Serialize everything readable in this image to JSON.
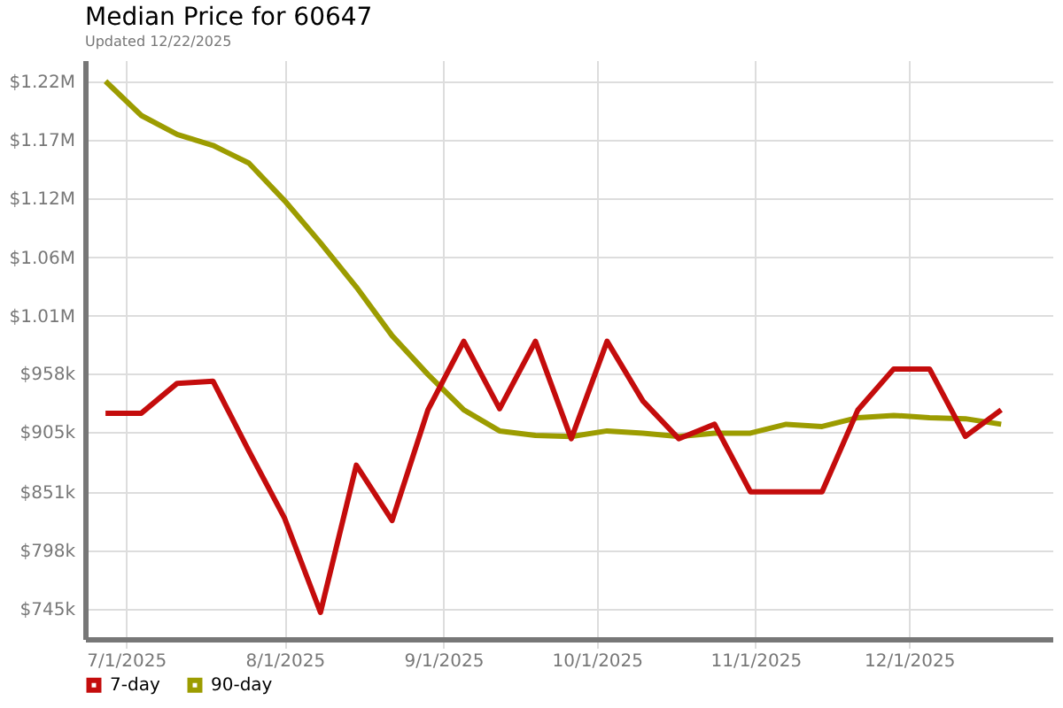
{
  "chart_data": {
    "type": "line",
    "title": "Median Price for 60647",
    "subtitle": "Updated 12/22/2025",
    "x": [
      "2025-06-27",
      "2025-07-04",
      "2025-07-11",
      "2025-07-18",
      "2025-07-25",
      "2025-08-01",
      "2025-08-08",
      "2025-08-15",
      "2025-08-22",
      "2025-08-29",
      "2025-09-05",
      "2025-09-12",
      "2025-09-19",
      "2025-09-26",
      "2025-10-03",
      "2025-10-10",
      "2025-10-17",
      "2025-10-24",
      "2025-10-31",
      "2025-11-07",
      "2025-11-14",
      "2025-11-21",
      "2025-11-28",
      "2025-12-05",
      "2025-12-12",
      "2025-12-19"
    ],
    "series": [
      {
        "name": "7-day",
        "color": "#c40c0c",
        "values": [
          922000,
          922000,
          949000,
          951000,
          888000,
          827000,
          742000,
          875000,
          825000,
          925000,
          987000,
          926000,
          987000,
          899000,
          987000,
          933000,
          899000,
          912000,
          851000,
          851000,
          851000,
          925000,
          962000,
          962000,
          901000,
          925000
        ]
      },
      {
        "name": "90-day",
        "color": "#9c9c00",
        "values": [
          1222000,
          1191000,
          1174000,
          1164000,
          1148000,
          1114000,
          1076000,
          1036000,
          992000,
          957000,
          925000,
          906000,
          902000,
          901000,
          906000,
          904000,
          901000,
          904000,
          904000,
          912000,
          910000,
          918000,
          920000,
          918000,
          917000,
          912000
        ]
      }
    ],
    "xlim": [
      "2025-06-23",
      "2025-12-29"
    ],
    "xticks": [
      {
        "value": "2025-07-01",
        "label": "7/1/2025"
      },
      {
        "value": "2025-08-01",
        "label": "8/1/2025"
      },
      {
        "value": "2025-09-01",
        "label": "9/1/2025"
      },
      {
        "value": "2025-10-01",
        "label": "10/1/2025"
      },
      {
        "value": "2025-11-01",
        "label": "11/1/2025"
      },
      {
        "value": "2025-12-01",
        "label": "12/1/2025"
      }
    ],
    "ylim": [
      718000,
      1241000
    ],
    "yticks": [
      {
        "value": 745000,
        "label": "$745k"
      },
      {
        "value": 798000,
        "label": "$798k"
      },
      {
        "value": 851000,
        "label": "$851k"
      },
      {
        "value": 905000,
        "label": "$905k"
      },
      {
        "value": 958000,
        "label": "$958k"
      },
      {
        "value": 1010000,
        "label": "$1.01M"
      },
      {
        "value": 1063000,
        "label": "$1.06M"
      },
      {
        "value": 1116000,
        "label": "$1.12M"
      },
      {
        "value": 1169000,
        "label": "$1.17M"
      },
      {
        "value": 1222000,
        "label": "$1.22M"
      }
    ],
    "grid": true,
    "legend": "bottom"
  }
}
